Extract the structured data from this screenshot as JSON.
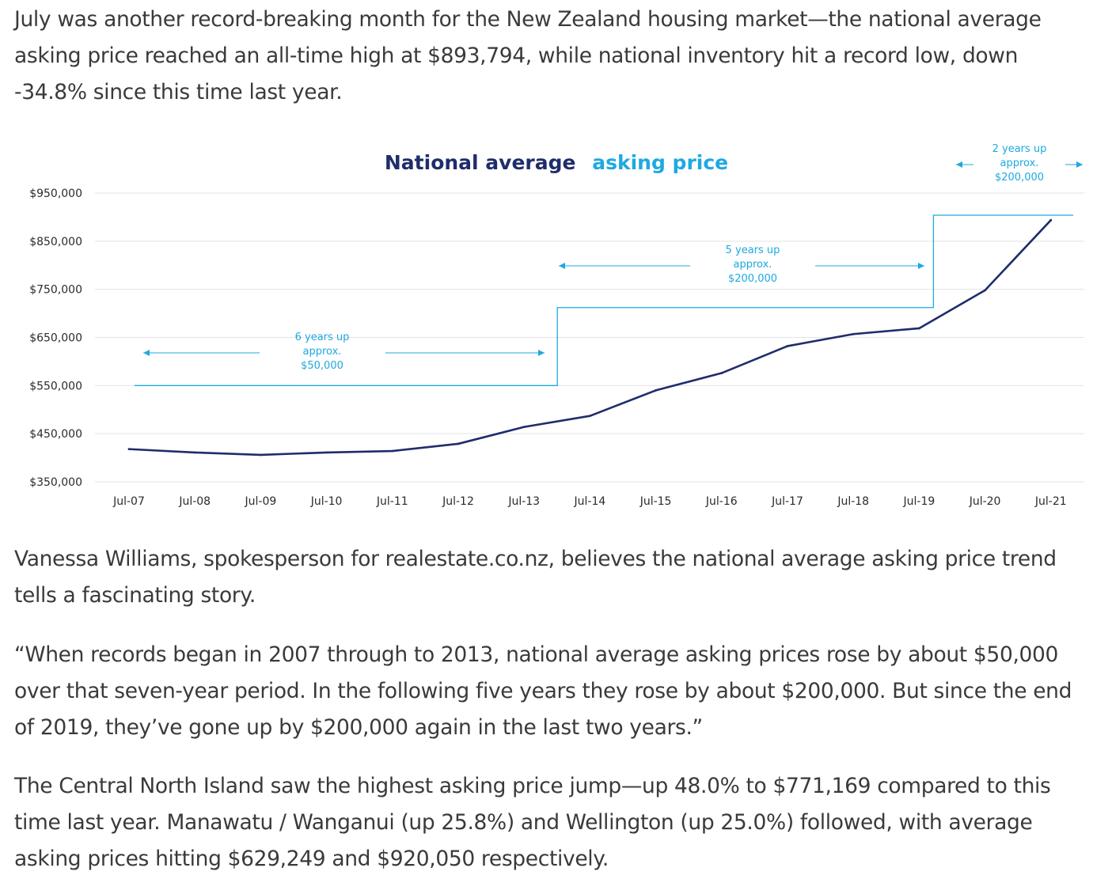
{
  "article": {
    "paragraph_1": "July was another record-breaking month for the New Zealand housing market—the national average asking price reached an all-time high at $893,794, while national inventory hit a record low, down -34.8% since this time last year.",
    "paragraph_2": "Vanessa Williams, spokesperson for realestate.co.nz, believes the national average asking price trend tells a fascinating story.",
    "paragraph_3": "“When records began in 2007 through to 2013, national average asking prices rose by about $50,000 over that seven-year period. In the following five years they rose by about $200,000. But since the end of 2019, they’ve gone up by $200,000 again in the last two years.”",
    "paragraph_4": "The Central North Island saw the highest asking price jump—up 48.0% to $771,169 compared to this time last year. Manawatu / Wanganui (up 25.8%) and Wellington (up 25.0%) followed, with average asking prices hitting $629,249 and $920,050 respectively."
  },
  "chart_data": {
    "type": "line",
    "title_part_1": "National average",
    "title_part_2": "asking price",
    "categories": [
      "Jul-07",
      "Jul-08",
      "Jul-09",
      "Jul-10",
      "Jul-11",
      "Jul-12",
      "Jul-13",
      "Jul-14",
      "Jul-15",
      "Jul-16",
      "Jul-17",
      "Jul-18",
      "Jul-19",
      "Jul-20",
      "Jul-21"
    ],
    "values": [
      418000,
      411000,
      406000,
      411000,
      414000,
      429000,
      464000,
      487000,
      540000,
      576000,
      632000,
      657000,
      669000,
      748000,
      893794
    ],
    "ylim": [
      350000,
      950000
    ],
    "y_ticks": [
      "$350,000",
      "$450,000",
      "$550,000",
      "$650,000",
      "$750,000",
      "$850,000",
      "$950,000"
    ],
    "y_tick_values": [
      350000,
      450000,
      550000,
      650000,
      750000,
      850000,
      950000
    ],
    "grid": true,
    "colors": {
      "line": "#1f2d6b",
      "accent": "#1ea9e1",
      "title": "#1f2d6b",
      "grid": "#e3e3e3"
    },
    "step_levels": [
      {
        "from": "Jul-07",
        "to": "Jul-13",
        "level": 550000
      },
      {
        "from": "Jul-13",
        "to": "Jul-19",
        "level": 712000
      },
      {
        "from": "Jul-19",
        "to": "Jul-21",
        "level": 904000
      }
    ],
    "annotations": [
      {
        "lines": [
          "6 years up",
          "approx.",
          "$50,000"
        ]
      },
      {
        "lines": [
          "5 years up",
          "approx.",
          "$200,000"
        ]
      },
      {
        "lines": [
          "2 years up",
          "approx.",
          "$200,000"
        ]
      }
    ]
  }
}
